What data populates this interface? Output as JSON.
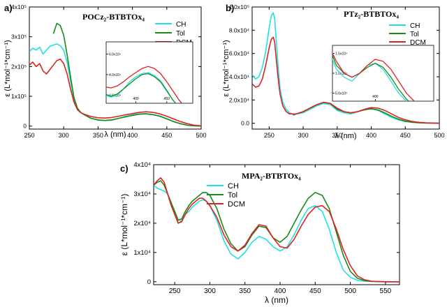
{
  "chart_data": [
    {
      "type": "line",
      "panel_label": "a)",
      "title": "POCz₂-BTBTOx₄",
      "xlabel": "λ (nm)",
      "ylabel": "ε (L*mol⁻¹*cm⁻¹)",
      "xlim": [
        250,
        500
      ],
      "ylim": [
        -10000,
        400000
      ],
      "xticks": [
        250,
        300,
        350,
        400,
        450,
        500
      ],
      "yticks": [
        0,
        100000,
        200000,
        300000,
        400000
      ],
      "ytick_labels": [
        "0",
        "1x10⁵",
        "2x10⁵",
        "3x10⁵",
        "4x10⁵"
      ],
      "legend": [
        "CH",
        "Tol",
        "DCM"
      ],
      "series": [
        {
          "name": "CH",
          "color": "#22e0e0",
          "x": [
            250,
            255,
            260,
            265,
            270,
            275,
            280,
            285,
            290,
            295,
            300,
            305,
            310,
            315,
            320,
            325,
            330,
            335,
            340,
            350,
            360,
            370,
            380,
            390,
            400,
            410,
            420,
            430,
            440,
            450,
            460,
            470,
            480,
            490,
            500
          ],
          "values": [
            250000,
            262000,
            255000,
            265000,
            242000,
            255000,
            268000,
            272000,
            276000,
            270000,
            255000,
            215000,
            150000,
            90000,
            60000,
            45000,
            38000,
            32000,
            26000,
            20000,
            18000,
            20000,
            26000,
            33000,
            38000,
            41000,
            42000,
            39000,
            34000,
            25000,
            15000,
            8000,
            3000,
            1000,
            0
          ]
        },
        {
          "name": "Tol",
          "color": "#1a8a1a",
          "x": [
            285,
            290,
            295,
            300,
            305,
            310,
            315,
            320,
            325,
            330,
            335,
            340,
            350,
            360,
            370,
            380,
            390,
            400,
            410,
            420,
            430,
            440,
            450,
            460,
            470,
            480,
            490,
            500
          ],
          "values": [
            310000,
            345000,
            338000,
            305000,
            240000,
            165000,
            95000,
            60000,
            45000,
            38000,
            32000,
            26000,
            21000,
            19000,
            21000,
            26000,
            31000,
            36000,
            40000,
            41000,
            38000,
            33000,
            24000,
            15000,
            8000,
            3000,
            1000,
            0
          ]
        },
        {
          "name": "DCM",
          "color": "#e02020",
          "x": [
            250,
            255,
            260,
            265,
            270,
            275,
            280,
            285,
            290,
            295,
            300,
            305,
            310,
            315,
            320,
            325,
            330,
            335,
            340,
            350,
            360,
            370,
            380,
            390,
            400,
            410,
            420,
            430,
            440,
            450,
            460,
            470,
            480,
            490,
            500
          ],
          "values": [
            205000,
            215000,
            200000,
            210000,
            185000,
            175000,
            190000,
            205000,
            220000,
            225000,
            210000,
            175000,
            125000,
            80000,
            55000,
            45000,
            40000,
            36000,
            32000,
            28000,
            27000,
            29000,
            33000,
            38000,
            42000,
            46000,
            48000,
            46000,
            41000,
            33000,
            24000,
            15000,
            8000,
            3000,
            1000
          ]
        }
      ],
      "inset": {
        "xticks": [
          400,
          450
        ],
        "ytick_labels": [
          "2.0x10⁴",
          "4.0x10⁴",
          "6.0x10⁴"
        ]
      }
    },
    {
      "type": "line",
      "panel_label": "b)",
      "title": "PTz₂-BTBTOx₄",
      "xlabel": "λ (nm)",
      "ylabel": "ε (L*mol⁻¹*cm⁻¹)",
      "xlim": [
        225,
        500
      ],
      "ylim": [
        -5000,
        100000
      ],
      "xticks": [
        250,
        300,
        350,
        400,
        450,
        500
      ],
      "yticks": [
        0,
        20000,
        40000,
        60000,
        80000,
        100000
      ],
      "ytick_labels": [
        "0.0",
        "2.0x10⁴",
        "4.0x10⁴",
        "6.0x10⁴",
        "8.0x10⁴",
        "1.0x10⁵"
      ],
      "legend": [
        "CH",
        "Tol",
        "DCM"
      ],
      "series": [
        {
          "name": "CH",
          "color": "#22e0e0",
          "x": [
            225,
            230,
            235,
            240,
            245,
            250,
            253,
            256,
            258,
            260,
            263,
            266,
            270,
            275,
            280,
            285,
            290,
            300,
            310,
            320,
            330,
            340,
            350,
            360,
            370,
            380,
            390,
            400,
            410,
            420,
            430,
            440,
            450,
            460,
            470,
            480,
            490,
            500
          ],
          "values": [
            42000,
            38000,
            40000,
            48000,
            62000,
            82000,
            92000,
            95000,
            90000,
            75000,
            50000,
            30000,
            18000,
            12000,
            9000,
            8000,
            8000,
            9000,
            12000,
            15000,
            17000,
            16000,
            11000,
            9000,
            8000,
            10000,
            12000,
            12500,
            11000,
            8000,
            5000,
            3000,
            1500,
            800,
            400,
            200,
            100,
            50
          ]
        },
        {
          "name": "Tol",
          "color": "#1a8a1a",
          "x": [
            285,
            290,
            300,
            310,
            320,
            330,
            340,
            350,
            360,
            370,
            380,
            390,
            400,
            410,
            420,
            430,
            440,
            450,
            460,
            470,
            480,
            490,
            500
          ],
          "values": [
            7000,
            8000,
            10000,
            13000,
            16000,
            18000,
            17000,
            12000,
            10000,
            9000,
            10000,
            11500,
            12500,
            11500,
            9000,
            6000,
            3500,
            1800,
            900,
            400,
            200,
            100,
            50
          ]
        },
        {
          "name": "DCM",
          "color": "#e02020",
          "x": [
            225,
            230,
            235,
            240,
            245,
            250,
            253,
            256,
            258,
            260,
            263,
            266,
            270,
            275,
            280,
            285,
            290,
            300,
            310,
            320,
            330,
            340,
            350,
            360,
            370,
            380,
            390,
            400,
            410,
            420,
            430,
            440,
            450,
            460,
            470,
            480,
            490,
            500
          ],
          "values": [
            34000,
            31000,
            32000,
            38000,
            50000,
            65000,
            72000,
            74000,
            70000,
            58000,
            40000,
            25000,
            15000,
            10000,
            8000,
            8000,
            8000,
            10000,
            13000,
            16000,
            18000,
            17000,
            13000,
            10000,
            9000,
            10000,
            12000,
            13500,
            13000,
            11000,
            8000,
            5000,
            3000,
            1600,
            800,
            400,
            200,
            100
          ]
        }
      ],
      "inset": {
        "xticks": [
          400
        ],
        "ytick_labels": [
          "5.0x10³",
          "1.0x10⁴",
          "1.5x10⁴"
        ]
      }
    },
    {
      "type": "line",
      "panel_label": "c)",
      "title": "MPA₂-BTBTOx₄",
      "xlabel": "λ (nm)",
      "ylabel": "ε (L*mol⁻¹*cm⁻¹)",
      "xlim": [
        220,
        570
      ],
      "ylim": [
        -1000,
        40000
      ],
      "xticks": [
        250,
        300,
        350,
        400,
        450,
        500,
        550
      ],
      "yticks": [
        0,
        10000,
        20000,
        30000,
        40000
      ],
      "ytick_labels": [
        "0",
        "1x10⁴",
        "2x10⁴",
        "3x10⁴",
        "4x10⁴"
      ],
      "legend": [
        "CH",
        "Tol",
        "DCM"
      ],
      "series": [
        {
          "name": "CH",
          "color": "#22e0e0",
          "x": [
            220,
            225,
            230,
            235,
            240,
            245,
            250,
            255,
            260,
            265,
            270,
            275,
            280,
            285,
            290,
            295,
            300,
            310,
            320,
            330,
            340,
            350,
            360,
            370,
            380,
            390,
            400,
            410,
            420,
            430,
            440,
            450,
            460,
            470,
            480,
            490,
            500,
            510,
            520,
            530,
            540,
            550,
            560,
            570
          ],
          "values": [
            33000,
            32000,
            31500,
            31000,
            30000,
            27000,
            23000,
            20000,
            21000,
            23000,
            24000,
            25500,
            26500,
            27500,
            28000,
            27500,
            26000,
            21000,
            14000,
            9500,
            7800,
            10000,
            13500,
            15500,
            14500,
            12000,
            10500,
            12000,
            16000,
            21000,
            25000,
            26000,
            24000,
            18000,
            10000,
            4000,
            1500,
            500,
            200,
            100,
            50,
            0,
            0,
            0
          ]
        },
        {
          "name": "Tol",
          "color": "#1a8a1a",
          "x": [
            220,
            225,
            230,
            235,
            240,
            245,
            250,
            255,
            260,
            265,
            270,
            275,
            280,
            285,
            290,
            295,
            300,
            310,
            320,
            330,
            340,
            350,
            360,
            370,
            380,
            390,
            400,
            410,
            420,
            430,
            440,
            450,
            460,
            470,
            480,
            490,
            500,
            510,
            520,
            530,
            540,
            550,
            560,
            570
          ],
          "values": [
            33000,
            34000,
            34500,
            33000,
            30000,
            27000,
            24000,
            21000,
            21500,
            24000,
            26000,
            27500,
            28500,
            29500,
            30500,
            30500,
            29500,
            25000,
            18000,
            13000,
            10500,
            12000,
            16000,
            19000,
            18500,
            15000,
            13500,
            15500,
            20000,
            24500,
            28500,
            30500,
            29500,
            25000,
            17000,
            9000,
            3500,
            1200,
            400,
            150,
            50,
            0,
            0,
            0
          ]
        },
        {
          "name": "DCM",
          "color": "#e02020",
          "x": [
            220,
            225,
            230,
            235,
            240,
            245,
            250,
            255,
            260,
            265,
            270,
            275,
            280,
            285,
            290,
            295,
            300,
            310,
            320,
            330,
            340,
            350,
            360,
            370,
            380,
            390,
            400,
            410,
            420,
            430,
            440,
            450,
            460,
            470,
            480,
            490,
            500,
            510,
            520,
            530,
            540,
            550,
            560,
            570
          ],
          "values": [
            33000,
            34500,
            35500,
            34000,
            30000,
            26000,
            23000,
            20000,
            20500,
            23000,
            25000,
            26500,
            27500,
            28500,
            28500,
            27500,
            26000,
            22000,
            16000,
            12000,
            10500,
            12500,
            16500,
            19500,
            19000,
            15000,
            12000,
            11500,
            14500,
            19000,
            23000,
            25500,
            26000,
            24000,
            18000,
            11000,
            5500,
            2000,
            700,
            200,
            50,
            0,
            0,
            0
          ]
        }
      ]
    }
  ]
}
